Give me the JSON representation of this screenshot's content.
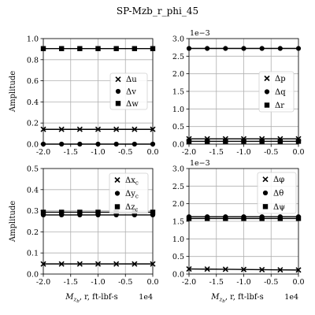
{
  "title": "SP-Mzb_r_phi_45",
  "colors": {
    "series": "#000000",
    "grid": "#b0b0b0"
  },
  "chart_data": [
    {
      "type": "line",
      "id": "top-left",
      "x": [
        -20000,
        -16667,
        -13333,
        -10000,
        -6667,
        -3333,
        0
      ],
      "xlim": [
        -20000,
        0
      ],
      "xticks": [
        "-2.0",
        "-1.5",
        "-1.0",
        "-0.5",
        "0.0"
      ],
      "xticks_values": [
        -20000,
        -15000,
        -10000,
        -5000,
        0
      ],
      "ylim": [
        0,
        1.0
      ],
      "yticks": [
        "0.0",
        "0.2",
        "0.4",
        "0.6",
        "0.8",
        "1.0"
      ],
      "yticks_values": [
        0,
        0.2,
        0.4,
        0.6,
        0.8,
        1.0
      ],
      "ylabel": "Amplitude",
      "xlabel": "",
      "offset_text": "",
      "xoffset_text": "",
      "grid": true,
      "legend": "center-right",
      "series": [
        {
          "name": "Δu",
          "marker": "x",
          "values": [
            0.14,
            0.14,
            0.14,
            0.14,
            0.14,
            0.14,
            0.14
          ]
        },
        {
          "name": "Δv",
          "marker": "circle",
          "values": [
            0.0,
            0.0,
            0.0,
            0.0,
            0.0,
            0.0,
            0.0
          ]
        },
        {
          "name": "Δw",
          "marker": "square",
          "values": [
            0.905,
            0.905,
            0.905,
            0.905,
            0.905,
            0.905,
            0.905
          ]
        }
      ]
    },
    {
      "type": "line",
      "id": "top-right",
      "x": [
        -20000,
        -16667,
        -13333,
        -10000,
        -6667,
        -3333,
        0
      ],
      "xlim": [
        -20000,
        0
      ],
      "xticks": [
        "-2.0",
        "-1.5",
        "-1.0",
        "-0.5",
        "0.0"
      ],
      "xticks_values": [
        -20000,
        -15000,
        -10000,
        -5000,
        0
      ],
      "ylim": [
        0,
        0.003
      ],
      "yticks": [
        "0.0",
        "0.5",
        "1.0",
        "1.5",
        "2.0",
        "2.5",
        "3.0"
      ],
      "yticks_values": [
        0,
        0.0005,
        0.001,
        0.0015,
        0.002,
        0.0025,
        0.003
      ],
      "ylabel": "",
      "xlabel": "",
      "offset_text": "1e−3",
      "xoffset_text": "",
      "grid": true,
      "legend": "center-right",
      "series": [
        {
          "name": "Δp",
          "marker": "x",
          "values": [
            0.00015,
            0.00015,
            0.00015,
            0.00015,
            0.00015,
            0.00015,
            0.00015
          ]
        },
        {
          "name": "Δq",
          "marker": "circle",
          "values": [
            0.00272,
            0.00272,
            0.00272,
            0.00272,
            0.00272,
            0.00272,
            0.00272
          ]
        },
        {
          "name": "Δr",
          "marker": "square",
          "values": [
            8e-05,
            8e-05,
            8e-05,
            8e-05,
            8e-05,
            8e-05,
            8e-05
          ]
        }
      ]
    },
    {
      "type": "line",
      "id": "bottom-left",
      "x": [
        -20000,
        -16667,
        -13333,
        -10000,
        -6667,
        -3333,
        0
      ],
      "xlim": [
        -20000,
        0
      ],
      "xticks": [
        "-2.0",
        "-1.5",
        "-1.0",
        "-0.5",
        "0.0"
      ],
      "xticks_values": [
        -20000,
        -15000,
        -10000,
        -5000,
        0
      ],
      "ylim": [
        0,
        0.5
      ],
      "yticks": [
        "0.0",
        "0.1",
        "0.2",
        "0.3",
        "0.4",
        "0.5"
      ],
      "yticks_values": [
        0,
        0.1,
        0.2,
        0.3,
        0.4,
        0.5
      ],
      "ylabel": "Amplitude",
      "xlabel": "M_{z_b}, r, ft-lbf-s",
      "xlabel_parts": {
        "main": "M",
        "sub1": "z",
        "sub2": "b",
        "rest": ", r, ft-lbf-s"
      },
      "offset_text": "",
      "xoffset_text": "1e4",
      "grid": true,
      "legend": "top-right",
      "series": [
        {
          "name": "Δx_c",
          "name_parts": {
            "main": "Δx",
            "sub": "c"
          },
          "marker": "x",
          "values": [
            0.048,
            0.048,
            0.048,
            0.048,
            0.048,
            0.048,
            0.048
          ]
        },
        {
          "name": "Δy_c",
          "name_parts": {
            "main": "Δy",
            "sub": "c"
          },
          "marker": "circle",
          "values": [
            0.28,
            0.28,
            0.28,
            0.28,
            0.28,
            0.28,
            0.28
          ]
        },
        {
          "name": "Δz_c",
          "name_parts": {
            "main": "Δz",
            "sub": "c"
          },
          "marker": "square",
          "values": [
            0.293,
            0.293,
            0.293,
            0.293,
            0.293,
            0.293,
            0.293
          ]
        }
      ]
    },
    {
      "type": "line",
      "id": "bottom-right",
      "x": [
        -20000,
        -16667,
        -13333,
        -10000,
        -6667,
        -3333,
        0
      ],
      "xlim": [
        -20000,
        0
      ],
      "xticks": [
        "-2.0",
        "-1.5",
        "-1.0",
        "-0.5",
        "0.0"
      ],
      "xticks_values": [
        -20000,
        -15000,
        -10000,
        -5000,
        0
      ],
      "ylim": [
        0,
        0.003
      ],
      "yticks": [
        "0.0",
        "0.5",
        "1.0",
        "1.5",
        "2.0",
        "2.5",
        "3.0"
      ],
      "yticks_values": [
        0,
        0.0005,
        0.001,
        0.0015,
        0.002,
        0.0025,
        0.003
      ],
      "ylabel": "",
      "xlabel": "M_{z_b}, r, ft-lbf-s",
      "xlabel_parts": {
        "main": "M",
        "sub1": "z",
        "sub2": "b",
        "rest": ", r, ft-lbf-s"
      },
      "offset_text": "1e−3",
      "xoffset_text": "1e4",
      "grid": true,
      "legend": "top-right",
      "series": [
        {
          "name": "Δφ",
          "marker": "x",
          "values": [
            0.000145,
            0.00014,
            0.000135,
            0.00013,
            0.000125,
            0.00012,
            0.000115
          ]
        },
        {
          "name": "Δθ",
          "marker": "circle",
          "values": [
            0.00163,
            0.00163,
            0.00163,
            0.00163,
            0.00163,
            0.00163,
            0.00163
          ]
        },
        {
          "name": "Δψ",
          "marker": "square",
          "values": [
            0.00158,
            0.00158,
            0.00158,
            0.00158,
            0.00158,
            0.00158,
            0.00158
          ]
        }
      ]
    }
  ]
}
